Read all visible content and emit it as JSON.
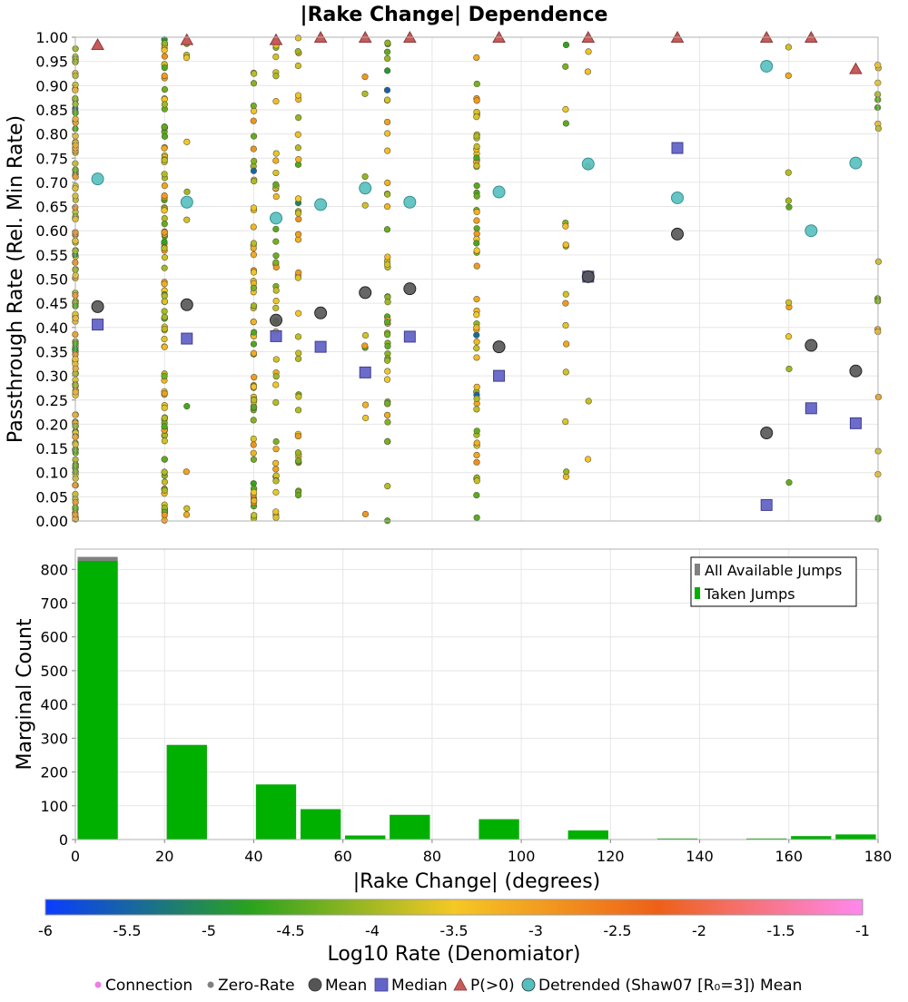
{
  "colors": {
    "connection": "#f07ce6",
    "zero_rate": "#808080",
    "mean": "#555555",
    "median": "#6464c8",
    "p_gt_0": "#c85a5a",
    "detrended": "#55bfbf",
    "all_jumps_bar": "#808080",
    "taken_jumps_bar": "#00b000",
    "colorbar_stops": [
      "#0a3cff",
      "#2aa21e",
      "#f5c825",
      "#ee6018",
      "#ff88ee"
    ]
  },
  "chart_data": [
    {
      "type": "scatter",
      "title": "|Rake Change| Dependence",
      "ylabel": "Passthrough Rate (Rel. Min Rate)",
      "xlim": [
        0,
        180
      ],
      "ylim": [
        0,
        1
      ],
      "y_ticks": [
        "0.00",
        "0.05",
        "0.10",
        "0.15",
        "0.20",
        "0.25",
        "0.30",
        "0.35",
        "0.40",
        "0.45",
        "0.50",
        "0.55",
        "0.60",
        "0.65",
        "0.70",
        "0.75",
        "0.80",
        "0.85",
        "0.90",
        "0.95",
        "1.00"
      ],
      "grid": true,
      "x_clusters": [
        0,
        20,
        25,
        40,
        45,
        50,
        65,
        70,
        90,
        110,
        115,
        160,
        180
      ],
      "series": [
        {
          "name": "Mean",
          "x": [
            5,
            25,
            45,
            55,
            65,
            75,
            95,
            115,
            135,
            155,
            165,
            175
          ],
          "y": [
            0.443,
            0.447,
            0.415,
            0.43,
            0.472,
            0.48,
            0.36,
            0.505,
            0.593,
            0.182,
            0.363,
            0.31
          ]
        },
        {
          "name": "Median",
          "x": [
            5,
            25,
            45,
            55,
            65,
            75,
            95,
            115,
            135,
            155,
            165,
            175
          ],
          "y": [
            0.406,
            0.377,
            0.382,
            0.36,
            0.307,
            0.381,
            0.3,
            0.505,
            0.771,
            0.033,
            0.233,
            0.202
          ]
        },
        {
          "name": "P(>0)",
          "x": [
            5,
            25,
            45,
            55,
            65,
            75,
            95,
            115,
            135,
            155,
            165,
            175
          ],
          "y": [
            0.985,
            0.995,
            0.995,
            1.0,
            1.0,
            1.0,
            1.0,
            1.0,
            1.0,
            1.0,
            1.0,
            0.935
          ]
        },
        {
          "name": "Detrended (Shaw07 [R₀=3]) Mean",
          "x": [
            5,
            25,
            45,
            55,
            65,
            75,
            95,
            115,
            135,
            155,
            165,
            175
          ],
          "y": [
            0.707,
            0.659,
            0.626,
            0.654,
            0.688,
            0.659,
            0.68,
            0.738,
            0.668,
            0.94,
            0.6,
            0.74
          ]
        }
      ]
    },
    {
      "type": "bar",
      "xlabel": "|Rake Change| (degrees)",
      "ylabel": "Marginal Count",
      "xlim": [
        0,
        180
      ],
      "ylim": [
        0,
        860
      ],
      "x_ticks": [
        "0",
        "20",
        "40",
        "60",
        "80",
        "100",
        "120",
        "140",
        "160",
        "180"
      ],
      "y_ticks": [
        "0",
        "100",
        "200",
        "300",
        "400",
        "500",
        "600",
        "700",
        "800"
      ],
      "bin_centers": [
        5,
        25,
        45,
        55,
        65,
        75,
        95,
        115,
        135,
        155,
        165,
        175
      ],
      "series": [
        {
          "name": "All Available Jumps",
          "values": [
            837,
            280,
            163,
            90,
            12,
            73,
            60,
            27,
            3,
            3,
            10,
            15
          ]
        },
        {
          "name": "Taken Jumps",
          "values": [
            825,
            280,
            163,
            90,
            12,
            73,
            60,
            27,
            3,
            3,
            10,
            15
          ]
        }
      ],
      "legend_position": "top-right",
      "grid": true
    },
    {
      "type": "colorbar",
      "label": "Log10 Rate (Denomiator)",
      "range": [
        -6,
        -1
      ],
      "tick_labels": [
        "-6",
        "-5.5",
        "-5",
        "-4.5",
        "-4",
        "-3.5",
        "-3",
        "-2.5",
        "-2",
        "-1.5",
        "-1"
      ]
    }
  ],
  "legend_bottom": [
    {
      "label": "Connection",
      "marker": "small-dot",
      "color_key": "connection"
    },
    {
      "label": "Zero-Rate",
      "marker": "small-dot",
      "color_key": "zero_rate"
    },
    {
      "label": "Mean",
      "marker": "circle",
      "color_key": "mean"
    },
    {
      "label": "Median",
      "marker": "square",
      "color_key": "median"
    },
    {
      "label": "P(>0)",
      "marker": "triangle",
      "color_key": "p_gt_0"
    },
    {
      "label": "Detrended (Shaw07 [R₀=3]) Mean",
      "marker": "circle",
      "color_key": "detrended"
    }
  ]
}
